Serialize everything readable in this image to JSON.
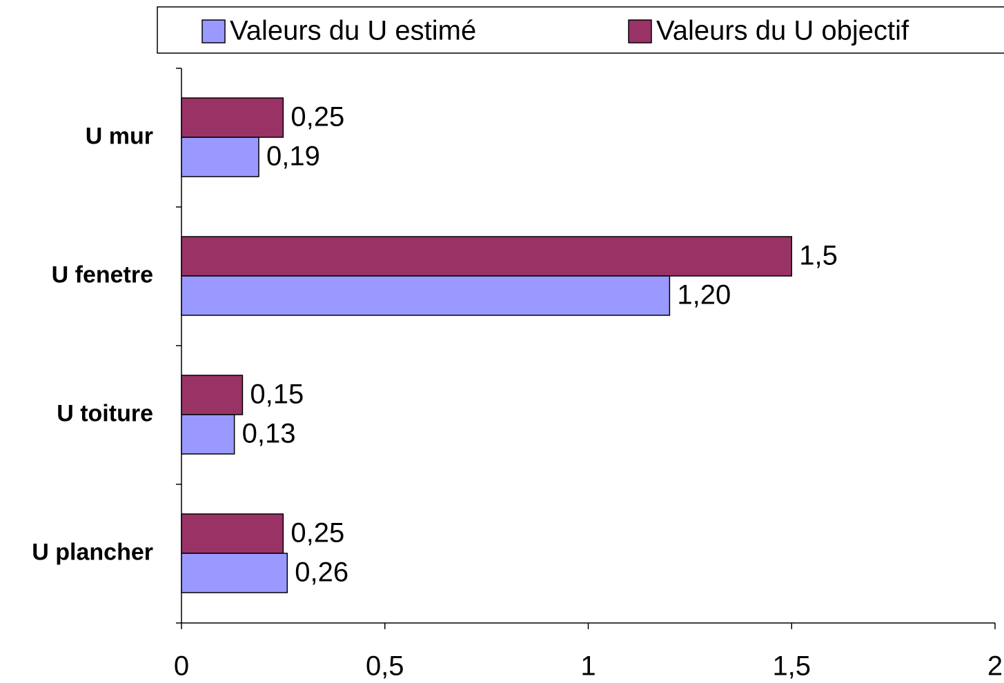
{
  "chart_data": {
    "type": "bar",
    "orientation": "horizontal",
    "categories": [
      "U mur",
      "U fenetre",
      "U toiture",
      "U plancher"
    ],
    "series": [
      {
        "name": "Valeurs du U estimé",
        "color": "#9999ff",
        "values": [
          0.19,
          1.2,
          0.13,
          0.26
        ],
        "value_labels": [
          "0,19",
          "1,20",
          "0,13",
          "0,26"
        ]
      },
      {
        "name": "Valeurs du U objectif",
        "color": "#993366",
        "values": [
          0.25,
          1.5,
          0.15,
          0.25
        ],
        "value_labels": [
          "0,25",
          "1,5",
          "0,15",
          "0,25"
        ]
      }
    ],
    "xlim": [
      0,
      2
    ],
    "xticks": [
      0,
      {
        "value": 0.5,
        "label": "0,5"
      },
      1,
      {
        "value": 1.5,
        "label": "1,5"
      },
      2
    ],
    "legend": "top"
  }
}
